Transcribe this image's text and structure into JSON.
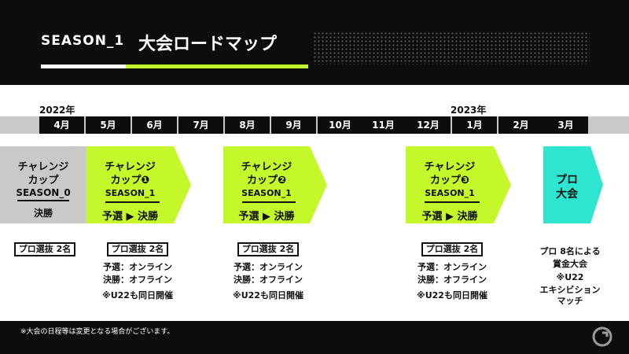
{
  "header": {
    "season": "SEASON_1",
    "title": "大会ロードマップ"
  },
  "years": [
    "2022年",
    "2023年"
  ],
  "months": [
    "4月",
    "5月",
    "6月",
    "7月",
    "8月",
    "9月",
    "10月",
    "11月",
    "12月",
    "1月",
    "2月",
    "3月"
  ],
  "events": [
    {
      "name_line1": "チャレンジ",
      "name_line2": "カップ",
      "season": "SEASON_0",
      "stage": "決勝"
    },
    {
      "name_line1": "チャレンジ",
      "name_line2": "カップ❶",
      "season": "SEASON_1",
      "stage": "予選 ▶ 決勝"
    },
    {
      "name_line1": "チャレンジ",
      "name_line2": "カップ❷",
      "season": "SEASON_1",
      "stage": "予選 ▶ 決勝"
    },
    {
      "name_line1": "チャレンジ",
      "name_line2": "カップ❸",
      "season": "SEASON_1",
      "stage": "予選 ▶ 決勝"
    },
    {
      "name_line1": "プロ",
      "name_line2": "大会"
    }
  ],
  "details": {
    "badge": "プロ選抜 2名",
    "qualifier": "予選：オンライン",
    "final": "決勝：オフライン",
    "u22": "※U22も同日開催",
    "pro_line1": "プロ 8名による",
    "pro_line2": "賞金大会",
    "pro_line3": "※U22",
    "pro_line4": "エキシビション",
    "pro_line5": "マッチ"
  },
  "footer": {
    "note": "※大会の日程等は変更となる場合がございます。"
  },
  "colors": {
    "accent_green": "#c5f82a",
    "accent_teal": "#2ee6cf",
    "dark": "#0d0d0d",
    "gray": "#c9c9c9"
  }
}
